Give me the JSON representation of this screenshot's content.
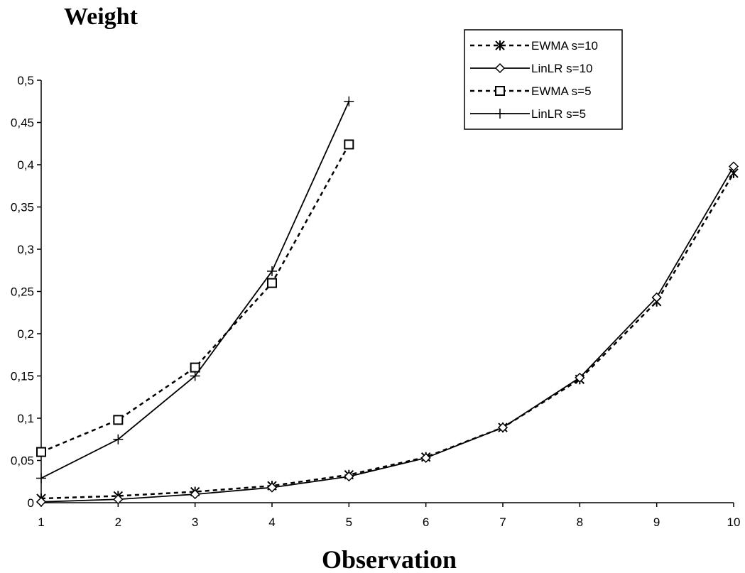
{
  "chart_data": {
    "type": "line",
    "title": "",
    "ylabel": "Weight",
    "xlabel": "Observation",
    "xlim": [
      1,
      10
    ],
    "ylim": [
      0,
      0.5
    ],
    "x_ticks": [
      "1",
      "2",
      "3",
      "4",
      "5",
      "6",
      "7",
      "8",
      "9",
      "10"
    ],
    "y_ticks": [
      "0",
      "0,05",
      "0,1",
      "0,15",
      "0,2",
      "0,25",
      "0,3",
      "0,35",
      "0,4",
      "0,45",
      "0,5"
    ],
    "grid": false,
    "legend_position": "top-right",
    "series": [
      {
        "name": "EWMA s=10",
        "line": "dashed",
        "marker": "x-star",
        "x": [
          1,
          2,
          3,
          4,
          5,
          6,
          7,
          8,
          9,
          10
        ],
        "y": [
          0.005,
          0.008,
          0.013,
          0.02,
          0.033,
          0.054,
          0.089,
          0.146,
          0.238,
          0.39
        ]
      },
      {
        "name": "LinLR s=10",
        "line": "solid",
        "marker": "diamond",
        "x": [
          1,
          2,
          3,
          4,
          5,
          6,
          7,
          8,
          9,
          10
        ],
        "y": [
          0.001,
          0.004,
          0.01,
          0.018,
          0.031,
          0.053,
          0.089,
          0.148,
          0.243,
          0.398
        ]
      },
      {
        "name": "EWMA s=5",
        "line": "dashed",
        "marker": "square",
        "x": [
          1,
          2,
          3,
          4,
          5
        ],
        "y": [
          0.06,
          0.098,
          0.16,
          0.26,
          0.424
        ]
      },
      {
        "name": "LinLR s=5",
        "line": "solid",
        "marker": "plus",
        "x": [
          1,
          2,
          3,
          4,
          5
        ],
        "y": [
          0.029,
          0.075,
          0.15,
          0.274,
          0.475
        ]
      }
    ]
  }
}
